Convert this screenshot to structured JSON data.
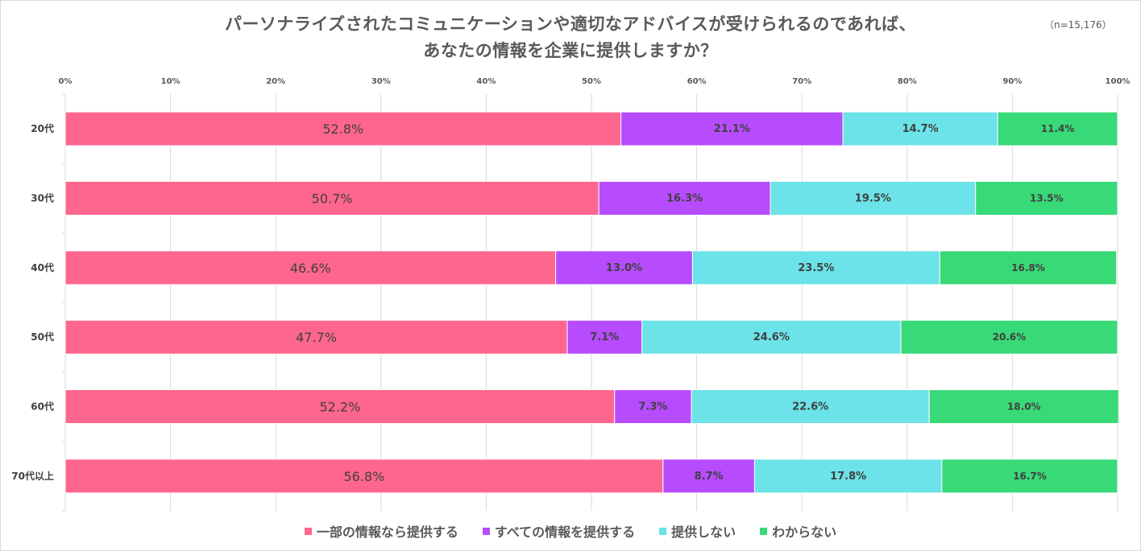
{
  "title_line1": "パーソナライズされたコミュニケーションや適切なアドバイスが受けられるのであれば、",
  "title_line2": "あなたの情報を企業に提供しますか？",
  "note": "（n=15,176）",
  "chart_data": {
    "type": "bar",
    "orientation": "horizontal",
    "stacked": true,
    "categories": [
      "20代",
      "30代",
      "40代",
      "50代",
      "60代",
      "70代以上"
    ],
    "xlim": [
      0,
      100
    ],
    "x_ticks": [
      "0%",
      "10%",
      "20%",
      "30%",
      "40%",
      "50%",
      "60%",
      "70%",
      "80%",
      "90%",
      "100%"
    ],
    "grid": true,
    "legend_position": "bottom",
    "series": [
      {
        "name": "一部の情報なら提供する",
        "color": "#ff668e",
        "values": [
          52.8,
          50.7,
          46.6,
          47.7,
          52.2,
          56.8
        ],
        "labels": [
          "52.8%",
          "50.7%",
          "46.6%",
          "47.7%",
          "52.2%",
          "56.8%"
        ]
      },
      {
        "name": "すべての情報を提供する",
        "color": "#b74cff",
        "values": [
          21.1,
          16.3,
          13.0,
          7.1,
          7.3,
          8.7
        ],
        "labels": [
          "21.1%",
          "16.3%",
          "13.0%",
          "7.1%",
          "7.3%",
          "8.7%"
        ]
      },
      {
        "name": "提供しない",
        "color": "#6be3e8",
        "values": [
          14.7,
          19.5,
          23.5,
          24.6,
          22.6,
          17.8
        ],
        "labels": [
          "14.7%",
          "19.5%",
          "23.5%",
          "24.6%",
          "22.6%",
          "17.8%"
        ]
      },
      {
        "name": "わからない",
        "color": "#38d977",
        "values": [
          11.4,
          13.5,
          16.8,
          20.6,
          18.0,
          16.7
        ],
        "labels": [
          "11.4%",
          "13.5%",
          "16.8%",
          "20.6%",
          "18.0%",
          "16.7%"
        ]
      }
    ]
  }
}
